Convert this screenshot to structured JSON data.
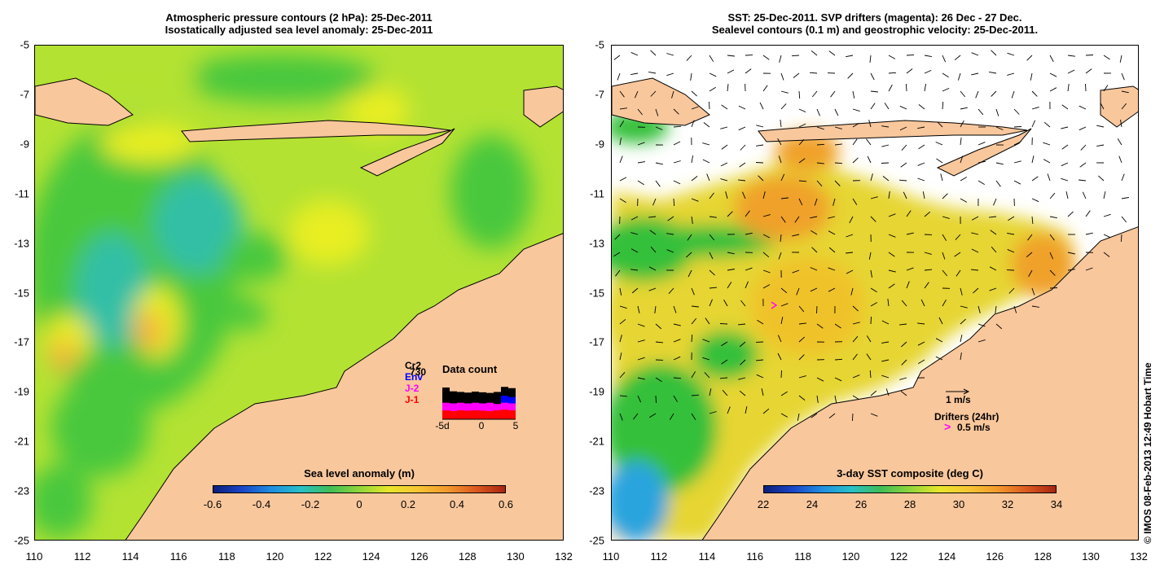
{
  "left_panel": {
    "title_line1": "Atmospheric pressure contours (2 hPa): 25-Dec-2011",
    "title_line2": "Isostatically adjusted sea level anomaly: 25-Dec-2011",
    "colorbar": {
      "title": "Sea level anomaly (m)",
      "ticks": [
        "-0.6",
        "-0.4",
        "-0.2",
        "0",
        "0.2",
        "0.4",
        "0.6"
      ]
    },
    "data_count": {
      "title": "Data count",
      "labels": [
        "Cr2",
        "Env",
        "J-2",
        "J-1"
      ],
      "label_colors": [
        "#000000",
        "#0000ff",
        "#ff00ff",
        "#ff0000"
      ],
      "overlay_label": "730",
      "x_ticks": [
        "-5d",
        "0",
        "5"
      ],
      "bars": [
        {
          "total": 1.0,
          "blue": 0.0,
          "magenta": 0.52,
          "red": 0.28
        },
        {
          "total": 0.88,
          "blue": 0.0,
          "magenta": 0.5,
          "red": 0.26
        },
        {
          "total": 0.86,
          "blue": 0.0,
          "magenta": 0.52,
          "red": 0.28
        },
        {
          "total": 0.84,
          "blue": 0.0,
          "magenta": 0.5,
          "red": 0.27
        },
        {
          "total": 0.87,
          "blue": 0.0,
          "magenta": 0.52,
          "red": 0.28
        },
        {
          "total": 0.85,
          "blue": 0.0,
          "magenta": 0.5,
          "red": 0.27
        },
        {
          "total": 0.83,
          "blue": 0.0,
          "magenta": 0.52,
          "red": 0.26
        },
        {
          "total": 0.86,
          "blue": 0.0,
          "magenta": 0.48,
          "red": 0.28
        },
        {
          "total": 1.02,
          "blue": 0.74,
          "magenta": 0.52,
          "red": 0.3
        },
        {
          "total": 0.98,
          "blue": 0.7,
          "magenta": 0.5,
          "red": 0.28
        }
      ]
    }
  },
  "right_panel": {
    "title_line1": "SST: 25-Dec-2011. SVP drifters (magenta): 26 Dec - 27 Dec.",
    "title_line2": "Sealevel contours (0.1 m) and geostrophic velocity: 25-Dec-2011.",
    "colorbar": {
      "title": "3-day SST composite (deg C)",
      "ticks": [
        "22",
        "24",
        "26",
        "28",
        "30",
        "32",
        "34"
      ]
    },
    "velocity_label": "1 m/s",
    "drifters_label": "Drifters (24hr)",
    "drifter_speed_label": "0.5 m/s",
    "drifter_glyph": ">"
  },
  "axes": {
    "x_ticks": [
      "110",
      "112",
      "114",
      "116",
      "118",
      "120",
      "122",
      "124",
      "126",
      "128",
      "130",
      "132"
    ],
    "y_ticks": [
      "-5",
      "-7",
      "-9",
      "-11",
      "-13",
      "-15",
      "-17",
      "-19",
      "-21",
      "-23",
      "-25"
    ],
    "lon_range": [
      110,
      132
    ],
    "lat_range": [
      -25,
      -5
    ]
  },
  "copyright": "© IMOS 08-Feb-2013 12:49 Hobart Time",
  "colors": {
    "land": "#f9c79c",
    "sla_base": "#b3e233",
    "sla_green": "#48c83c",
    "sla_teal": "#33bfa6",
    "sla_yellow": "#e8ee20",
    "sla_orange": "#f4b63a",
    "sst_base": "#e6d530",
    "sst_green": "#35c03b",
    "sst_orange": "#f0a12a",
    "sst_blue": "#2aa4dd",
    "coast_cyan": "#34e6ee"
  }
}
